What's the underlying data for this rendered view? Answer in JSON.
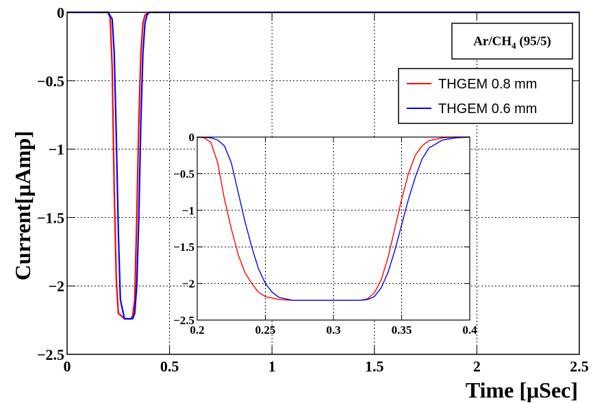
{
  "chart_data": [
    {
      "id": "main",
      "type": "line",
      "xlabel": "Time [μSec]",
      "ylabel": "Current[μAmp]",
      "xlim": [
        0,
        2.5
      ],
      "ylim": [
        -2.5,
        0
      ],
      "xticks": [
        0,
        0.5,
        1,
        1.5,
        2,
        2.5
      ],
      "xtick_labels": [
        "0",
        "0.5",
        "1",
        "1.5",
        "2",
        "2.5"
      ],
      "yticks": [
        0,
        -0.5,
        -1,
        -1.5,
        -2,
        -2.5
      ],
      "ytick_labels": [
        "0",
        "−0.5",
        "−1",
        "−1.5",
        "−2",
        "−2.5"
      ],
      "grid": true,
      "annotation": {
        "text_main": "Ar/CH",
        "text_sub": "4",
        "text_tail": " (95/5)"
      },
      "legend": {
        "position": "top-right",
        "entries": [
          "THGEM 0.8 mm",
          "THGEM 0.6 mm"
        ]
      },
      "series": [
        {
          "name": "THGEM 0.8 mm",
          "color": "#ff0000",
          "x": [
            0,
            0.2,
            0.21,
            0.22,
            0.23,
            0.24,
            0.25,
            0.28,
            0.31,
            0.32,
            0.33,
            0.34,
            0.35,
            0.36,
            0.37,
            0.38,
            0.4,
            2.5
          ],
          "y": [
            0,
            0,
            -0.04,
            -0.4,
            -1.3,
            -1.95,
            -2.2,
            -2.24,
            -2.24,
            -2.22,
            -2.1,
            -1.5,
            -0.8,
            -0.3,
            -0.08,
            -0.02,
            0,
            0
          ]
        },
        {
          "name": "THGEM 0.6 mm",
          "color": "#0000ff",
          "x": [
            0,
            0.2,
            0.22,
            0.23,
            0.24,
            0.25,
            0.26,
            0.28,
            0.32,
            0.33,
            0.34,
            0.35,
            0.36,
            0.37,
            0.38,
            0.39,
            0.4,
            2.5
          ],
          "y": [
            0,
            0,
            -0.05,
            -0.3,
            -0.9,
            -1.6,
            -2.1,
            -2.24,
            -2.24,
            -2.2,
            -2.0,
            -1.5,
            -0.8,
            -0.3,
            -0.08,
            -0.02,
            0,
            0
          ]
        }
      ]
    },
    {
      "id": "inset",
      "type": "line",
      "xlim": [
        0.2,
        0.4
      ],
      "ylim": [
        -2.5,
        0
      ],
      "xticks": [
        0.2,
        0.25,
        0.3,
        0.35,
        0.4
      ],
      "xtick_labels": [
        "0.2",
        "0.25",
        "0.3",
        "0.35",
        "0.4"
      ],
      "yticks": [
        0,
        -0.5,
        -1,
        -1.5,
        -2,
        -2.5
      ],
      "ytick_labels": [
        "0",
        "−0.5",
        "−1",
        "−1.5",
        "−2",
        "−2.5"
      ],
      "grid": true,
      "series": [
        {
          "name": "THGEM 0.8 mm",
          "color": "#ff0000",
          "x": [
            0.2,
            0.205,
            0.21,
            0.215,
            0.22,
            0.225,
            0.23,
            0.235,
            0.24,
            0.245,
            0.25,
            0.26,
            0.27,
            0.28,
            0.3,
            0.32,
            0.325,
            0.33,
            0.335,
            0.34,
            0.345,
            0.35,
            0.355,
            0.36,
            0.365,
            0.37,
            0.38,
            0.39,
            0.4
          ],
          "y": [
            0,
            -0.01,
            -0.07,
            -0.35,
            -0.85,
            -1.25,
            -1.6,
            -1.85,
            -2.0,
            -2.12,
            -2.18,
            -2.22,
            -2.23,
            -2.23,
            -2.23,
            -2.23,
            -2.21,
            -2.13,
            -1.95,
            -1.65,
            -1.25,
            -0.85,
            -0.5,
            -0.25,
            -0.12,
            -0.05,
            -0.01,
            0,
            0
          ]
        },
        {
          "name": "THGEM 0.6 mm",
          "color": "#0000ff",
          "x": [
            0.2,
            0.21,
            0.215,
            0.22,
            0.225,
            0.23,
            0.235,
            0.24,
            0.245,
            0.25,
            0.255,
            0.26,
            0.27,
            0.28,
            0.3,
            0.32,
            0.325,
            0.33,
            0.335,
            0.34,
            0.345,
            0.35,
            0.355,
            0.36,
            0.365,
            0.37,
            0.38,
            0.39,
            0.4
          ],
          "y": [
            0,
            -0.01,
            -0.04,
            -0.12,
            -0.35,
            -0.75,
            -1.15,
            -1.5,
            -1.8,
            -2.0,
            -2.12,
            -2.19,
            -2.23,
            -2.23,
            -2.23,
            -2.23,
            -2.22,
            -2.18,
            -2.06,
            -1.85,
            -1.55,
            -1.2,
            -0.85,
            -0.55,
            -0.3,
            -0.15,
            -0.04,
            -0.01,
            0
          ]
        }
      ]
    }
  ]
}
